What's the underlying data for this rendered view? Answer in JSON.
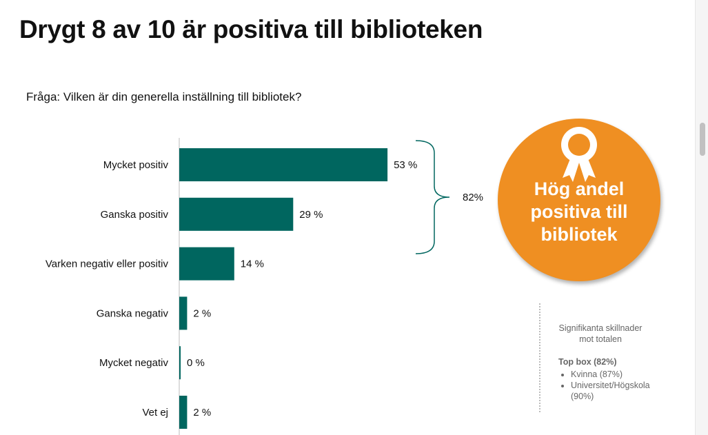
{
  "title": "Drygt 8 av 10 är positiva till biblioteken",
  "question": "Fråga: Vilken är din generella inställning till bibliotek?",
  "chart_data": {
    "type": "bar",
    "orientation": "horizontal",
    "categories": [
      "Mycket positiv",
      "Ganska positiv",
      "Varken negativ eller positiv",
      "Ganska negativ",
      "Mycket negativ",
      "Vet ej"
    ],
    "values": [
      53,
      29,
      14,
      2,
      0,
      2
    ],
    "value_labels": [
      "53 %",
      "29 %",
      "14 %",
      "2 %",
      "0 %",
      "2 %"
    ],
    "bar_color": "#00665f",
    "bracket": {
      "covers": [
        "Mycket positiv",
        "Ganska positiv"
      ],
      "label": "82%"
    },
    "grid": false
  },
  "badge": {
    "icon": "award-ribbon-icon",
    "lines": [
      "Hög andel",
      "positiva till",
      "bibliotek"
    ],
    "color": "#ef8f22"
  },
  "notes": {
    "heading_lines": [
      "Signifikanta skillnader",
      "mot totalen"
    ],
    "topbox": "Top box (82%)",
    "items": [
      "Kvinna (87%)",
      "Universitet/Högskola (90%)"
    ]
  }
}
